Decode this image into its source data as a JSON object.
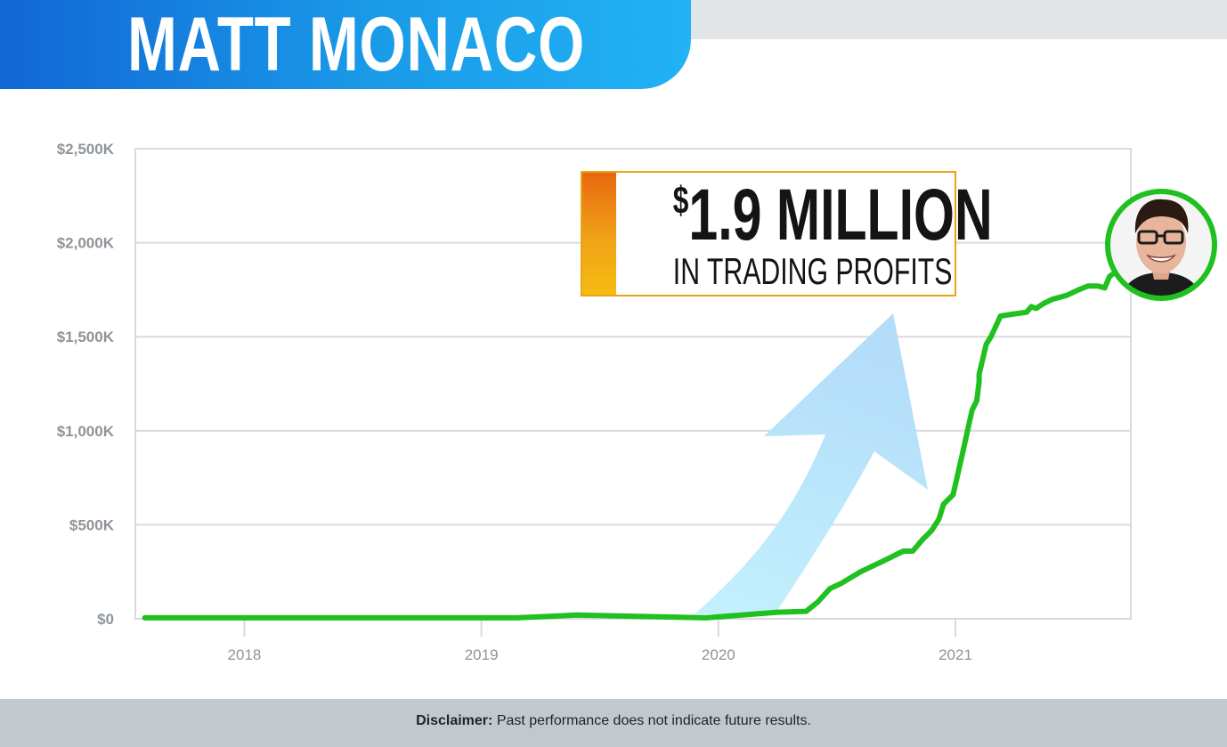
{
  "header": {
    "title": "MATT MONACO"
  },
  "callout": {
    "amount": "1.9 MILLION",
    "currency_symbol": "$",
    "subtitle": "IN TRADING PROFITS"
  },
  "avatar": {
    "icon": "person-photo-icon",
    "ring_color": "#1fc01f"
  },
  "disclaimer": {
    "label": "Disclaimer:",
    "text": "Past performance does not indicate future results."
  },
  "colors": {
    "line": "#1fc01f",
    "arrow": "#b5e6fb",
    "grid": "#d7dadd",
    "tick": "#8e9499",
    "banner": "#1a9be8"
  },
  "chart_data": {
    "type": "line",
    "title": "",
    "xlabel": "",
    "ylabel": "",
    "x_ticks": [
      "2018",
      "2019",
      "2020",
      "2021"
    ],
    "y_ticks": [
      "$0",
      "$500K",
      "$1,000K",
      "$1,500K",
      "$2,000K",
      "$2,500K"
    ],
    "ylim": [
      0,
      2500
    ],
    "xlim": [
      2017.54,
      2021.74
    ],
    "y_unit": "$K",
    "grid": "horizontal",
    "series": [
      {
        "x": [
          2017.58,
          2019.15,
          2019.4,
          2019.95,
          2020.1,
          2020.25,
          2020.37,
          2020.42,
          2020.47,
          2020.52,
          2020.6,
          2020.7,
          2020.78,
          2020.82,
          2020.86,
          2020.9,
          2020.93,
          2020.95,
          2020.95,
          2020.99,
          2021.03,
          2021.07,
          2021.09,
          2021.1,
          2021.1,
          2021.13,
          2021.15,
          2021.19,
          2021.24,
          2021.3,
          2021.32,
          2021.34,
          2021.37,
          2021.41,
          2021.47,
          2021.52,
          2021.56,
          2021.6,
          2021.63,
          2021.65,
          2021.66
        ],
        "y": [
          5,
          5,
          20,
          5,
          20,
          35,
          40,
          90,
          160,
          190,
          250,
          310,
          360,
          360,
          420,
          470,
          530,
          610,
          610,
          660,
          880,
          1110,
          1160,
          1260,
          1300,
          1460,
          1500,
          1610,
          1620,
          1630,
          1660,
          1650,
          1675,
          1700,
          1720,
          1750,
          1770,
          1770,
          1760,
          1820,
          1830
        ]
      }
    ]
  }
}
